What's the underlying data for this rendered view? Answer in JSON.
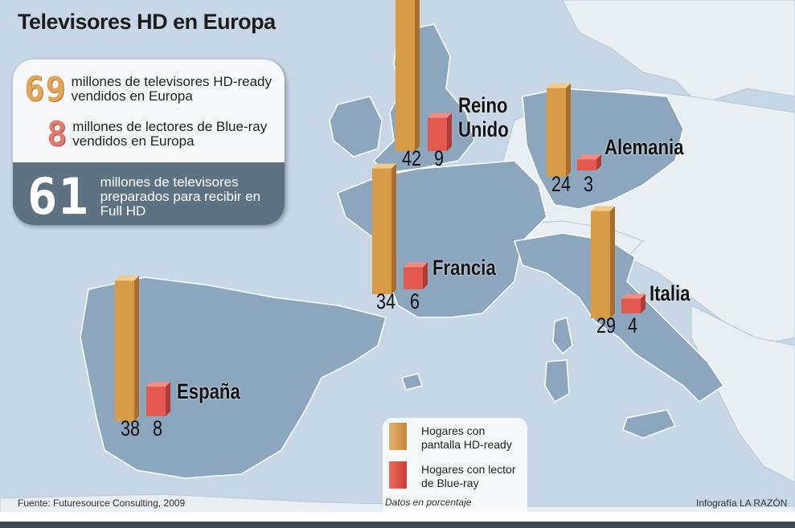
{
  "title": "Televisores HD en Europa",
  "stats": [
    {
      "number": "69",
      "text": "millones de televisores HD-ready vendidos en Europa"
    },
    {
      "number": "8",
      "text": "millones de lectores de Blue-ray vendidos en Europa"
    },
    {
      "number": "61",
      "text": "millones de televisores preparados para recibir en Full HD"
    }
  ],
  "chart_data": {
    "type": "bar",
    "categories": [
      "Reino Unido",
      "Alemania",
      "Francia",
      "Italia",
      "España"
    ],
    "series": [
      {
        "name": "Hogares con pantalla HD-ready",
        "values": [
          42,
          24,
          34,
          29,
          38
        ]
      },
      {
        "name": "Hogares con lector de Blue-ray",
        "values": [
          9,
          3,
          6,
          4,
          8
        ]
      }
    ],
    "unit_note": "Datos en porcentaje",
    "colors": {
      "hd": "#d79b46",
      "blueray": "#e25a4f"
    }
  },
  "country_labels": [
    "Reino\nUnido",
    "Alemania",
    "Francia",
    "Italia",
    "España"
  ],
  "legend": {
    "hd_label": "Hogares con pantalla HD-ready",
    "br_label": "Hogares con lector de Blue-ray",
    "note": "Datos en porcentaje"
  },
  "source": "Fuente: Futuresource Consulting, 2009",
  "credit": "Infografía LA RAZÓN"
}
